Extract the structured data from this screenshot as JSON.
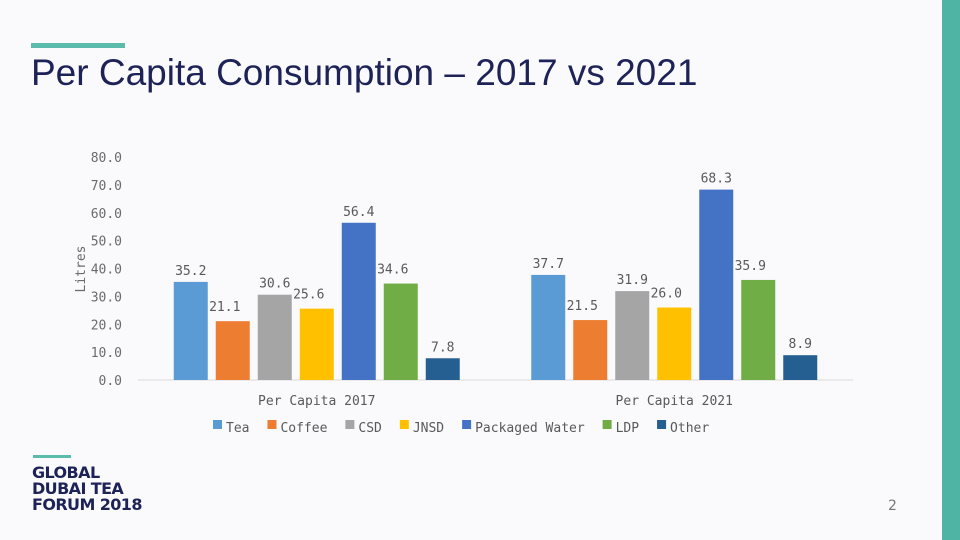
{
  "slide": {
    "title": "Per Capita Consumption – 2017 vs 2021",
    "page_number": "2",
    "accent_color": "#5bbcab",
    "title_color": "#1d2257"
  },
  "logo": {
    "lines": [
      "GLOBAL",
      "DUBAI TEA",
      "FORUM 2018"
    ]
  },
  "chart_data": {
    "type": "bar",
    "title": "",
    "ylabel": "Litres",
    "xlabel": "",
    "ylim": [
      0,
      80
    ],
    "yticks": [
      "0.0",
      "10.0",
      "20.0",
      "30.0",
      "40.0",
      "50.0",
      "60.0",
      "70.0",
      "80.0"
    ],
    "categories": [
      "Per Capita 2017",
      "Per Capita 2021"
    ],
    "legend_position": "bottom",
    "series": [
      {
        "name": "Tea",
        "color": "#5b9bd5",
        "values": [
          35.2,
          37.7
        ],
        "labels": [
          "35.2",
          "37.7"
        ]
      },
      {
        "name": "Coffee",
        "color": "#ed7d31",
        "values": [
          21.1,
          21.5
        ],
        "labels": [
          "21.1",
          "21.5"
        ]
      },
      {
        "name": "CSD",
        "color": "#a5a5a5",
        "values": [
          30.6,
          31.9
        ],
        "labels": [
          "30.6",
          "31.9"
        ]
      },
      {
        "name": "JNSD",
        "color": "#ffc000",
        "values": [
          25.6,
          26.0
        ],
        "labels": [
          "25.6",
          "26.0"
        ]
      },
      {
        "name": "Packaged Water",
        "color": "#4472c4",
        "values": [
          56.4,
          68.3
        ],
        "labels": [
          "56.4",
          "68.3"
        ]
      },
      {
        "name": "LDP",
        "color": "#70ad47",
        "values": [
          34.6,
          35.9
        ],
        "labels": [
          "34.6",
          "35.9"
        ]
      },
      {
        "name": "Other",
        "color": "#255e91",
        "values": [
          7.8,
          8.9
        ],
        "labels": [
          "7.8",
          "8.9"
        ]
      }
    ]
  }
}
